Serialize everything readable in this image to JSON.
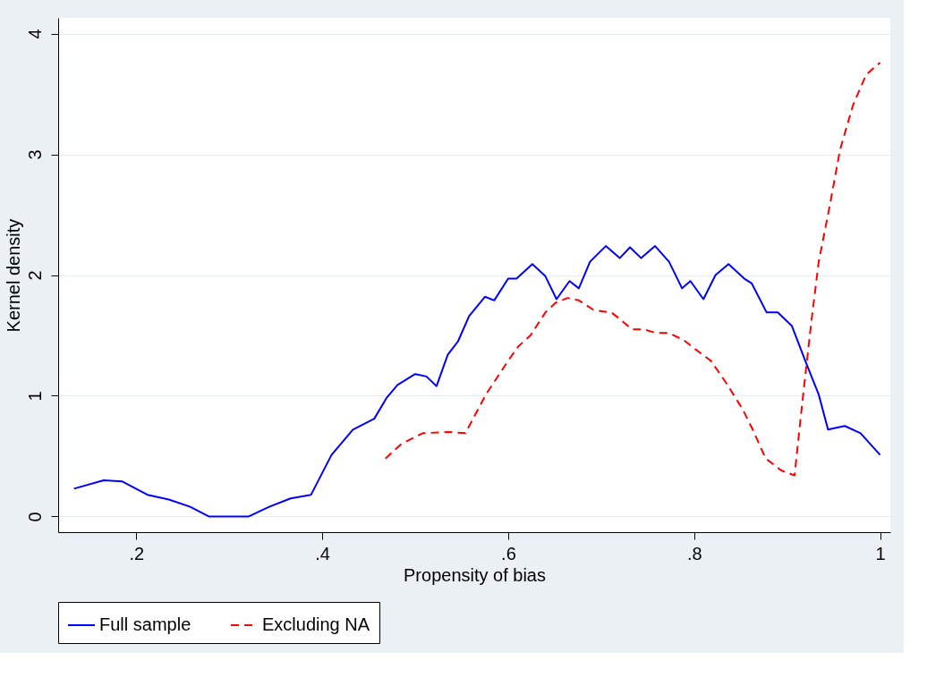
{
  "chart_data": {
    "type": "line",
    "xlabel": "Propensity of bias",
    "ylabel": "Kernel density",
    "xlim": [
      0.116,
      1.011
    ],
    "ylim": [
      -0.13,
      4.13
    ],
    "xticks": [
      {
        "value": 0.2,
        "label": ".2"
      },
      {
        "value": 0.4,
        "label": ".4"
      },
      {
        "value": 0.6,
        "label": ".6"
      },
      {
        "value": 0.8,
        "label": ".8"
      },
      1
    ],
    "yticks": [
      0,
      1,
      2,
      3,
      4
    ],
    "grid": "y",
    "legend": "bottom",
    "marker": "none",
    "series": [
      {
        "name": "Full sample",
        "color": "#0000ff",
        "line_style": "solid",
        "x": [
          0.133,
          0.165,
          0.185,
          0.212,
          0.235,
          0.258,
          0.278,
          0.321,
          0.343,
          0.366,
          0.388,
          0.41,
          0.433,
          0.456,
          0.469,
          0.481,
          0.5,
          0.512,
          0.523,
          0.535,
          0.546,
          0.558,
          0.575,
          0.585,
          0.6,
          0.609,
          0.626,
          0.64,
          0.652,
          0.666,
          0.676,
          0.688,
          0.705,
          0.72,
          0.731,
          0.743,
          0.758,
          0.773,
          0.787,
          0.796,
          0.81,
          0.823,
          0.837,
          0.854,
          0.862,
          0.878,
          0.89,
          0.905,
          0.92,
          0.934,
          0.944,
          0.962,
          0.979,
          1.0
        ],
        "values": [
          0.23,
          0.3,
          0.29,
          0.18,
          0.14,
          0.08,
          0,
          0,
          0.08,
          0.15,
          0.18,
          0.51,
          0.72,
          0.81,
          0.98,
          1.09,
          1.18,
          1.16,
          1.08,
          1.34,
          1.45,
          1.66,
          1.82,
          1.79,
          1.97,
          1.97,
          2.09,
          1.99,
          1.8,
          1.95,
          1.89,
          2.11,
          2.24,
          2.14,
          2.23,
          2.14,
          2.24,
          2.11,
          1.89,
          1.95,
          1.8,
          2.0,
          2.09,
          1.97,
          1.93,
          1.69,
          1.69,
          1.58,
          1.28,
          1.01,
          0.72,
          0.75,
          0.69,
          0.51
        ]
      },
      {
        "name": "Excluding NA",
        "color": "#ff0000",
        "line_style": "dashed",
        "x": [
          0.468,
          0.485,
          0.508,
          0.535,
          0.554,
          0.576,
          0.6,
          0.611,
          0.624,
          0.64,
          0.651,
          0.664,
          0.676,
          0.692,
          0.711,
          0.721,
          0.733,
          0.746,
          0.759,
          0.773,
          0.789,
          0.804,
          0.818,
          0.835,
          0.852,
          0.863,
          0.877,
          0.894,
          0.908,
          0.916,
          0.926,
          0.934,
          0.946,
          0.957,
          0.971,
          0.985,
          1.0
        ],
        "values": [
          0.48,
          0.6,
          0.69,
          0.7,
          0.69,
          1.01,
          1.29,
          1.41,
          1.5,
          1.69,
          1.77,
          1.81,
          1.79,
          1.71,
          1.69,
          1.63,
          1.55,
          1.55,
          1.52,
          1.52,
          1.46,
          1.37,
          1.29,
          1.1,
          0.89,
          0.72,
          0.48,
          0.38,
          0.34,
          0.92,
          1.61,
          2.11,
          2.58,
          3.04,
          3.41,
          3.66,
          3.76
        ]
      }
    ]
  }
}
